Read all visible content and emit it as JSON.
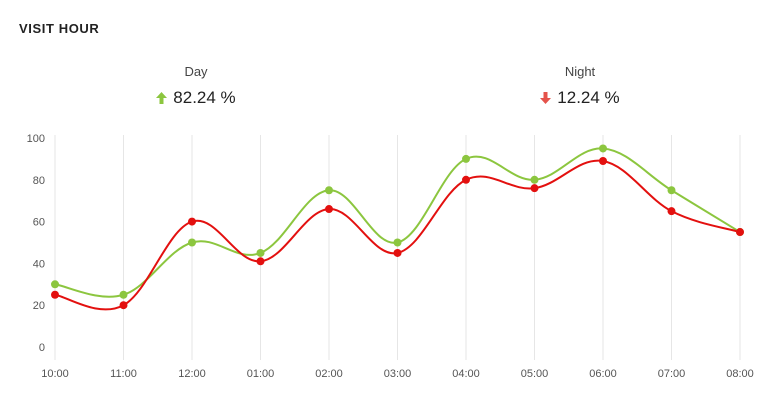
{
  "card": {
    "title": "VISIT HOUR"
  },
  "stats": {
    "day": {
      "label": "Day",
      "value": "82.24 %",
      "trend": "up",
      "icon": "arrow-up-icon"
    },
    "night": {
      "label": "Night",
      "value": "12.24 %",
      "trend": "down",
      "icon": "arrow-down-icon"
    }
  },
  "colors": {
    "day": "#8cc63f",
    "night": "#e3100f",
    "up_arrow": "#8cc63f",
    "down_arrow": "#e5534b",
    "grid": "#e6e6e6"
  },
  "chart_data": {
    "type": "line",
    "categories": [
      "10:00",
      "11:00",
      "12:00",
      "01:00",
      "02:00",
      "03:00",
      "04:00",
      "05:00",
      "06:00",
      "07:00",
      "08:00"
    ],
    "yticks": [
      0,
      20,
      40,
      60,
      80,
      100
    ],
    "ylim": [
      0,
      100
    ],
    "smooth": true,
    "grid": "vertical",
    "series": [
      {
        "name": "Day",
        "color": "#8cc63f",
        "values": [
          30,
          25,
          50,
          45,
          75,
          50,
          90,
          80,
          95,
          75,
          55
        ]
      },
      {
        "name": "Night",
        "color": "#e3100f",
        "values": [
          25,
          20,
          60,
          41,
          66,
          45,
          80,
          76,
          89,
          65,
          55
        ]
      }
    ]
  }
}
